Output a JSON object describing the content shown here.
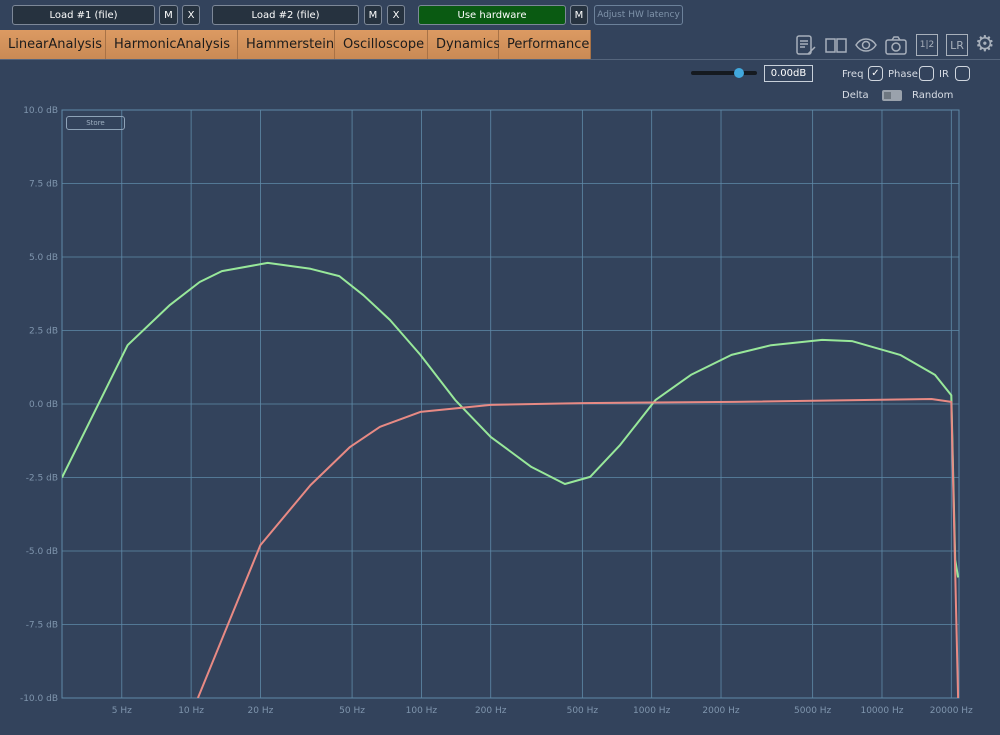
{
  "toolbar": {
    "load1": "Load #1 (file)",
    "load2": "Load #2 (file)",
    "m": "M",
    "x": "X",
    "hardware": "Use hardware",
    "adjust": "Adjust HW latency"
  },
  "tabs": [
    "LinearAnalysis",
    "HarmonicAnalysis",
    "Hammerstein",
    "Oscilloscope",
    "Dynamics",
    "Performance"
  ],
  "active_tab": "LinearAnalysis",
  "icons": [
    "notes-edit-icon",
    "book-icon",
    "eye-icon",
    "camera-icon",
    "one-two-icon",
    "lr-icon",
    "gear-icon"
  ],
  "icon_text": {
    "onetwo": "1|2",
    "lr": "LR"
  },
  "controls": {
    "gain_value": "0.00dB",
    "gain_slider_fraction": 0.72,
    "freq": "Freq",
    "freq_checked": true,
    "phase": "Phase",
    "phase_checked": false,
    "ir": "IR",
    "ir_checked": false,
    "delta": "Delta",
    "random": "Random",
    "store": "Store"
  },
  "colors": {
    "series1": "#98e89a",
    "series2": "#e88a84",
    "grid": "#5f8aa8",
    "background": "#33435c"
  },
  "chart_data": {
    "type": "line",
    "x_scale": "log",
    "xlim": [
      2.75,
      21600
    ],
    "ylim": [
      -10,
      10
    ],
    "grid": true,
    "x_ticks": [
      5,
      10,
      20,
      50,
      100,
      200,
      500,
      1000,
      2000,
      5000,
      10000,
      20000
    ],
    "x_tick_labels": [
      "5 Hz",
      "10 Hz",
      "20 Hz",
      "50 Hz",
      "100 Hz",
      "200 Hz",
      "500 Hz",
      "1000 Hz",
      "2000 Hz",
      "5000 Hz",
      "10000 Hz",
      "20000 Hz"
    ],
    "y_ticks": [
      10,
      7.5,
      5,
      2.5,
      0,
      -2.5,
      -5,
      -7.5,
      -10
    ],
    "y_tick_labels": [
      "10.0 dB",
      "7.5 dB",
      "5.0 dB",
      "2.5 dB",
      "0.0 dB",
      "-2.5 dB",
      "-5.0 dB",
      "-7.5 dB",
      "-10.0 dB"
    ],
    "series": [
      {
        "color": "#98e89a",
        "points": [
          [
            2.75,
            -2.5
          ],
          [
            5.3,
            2.0
          ],
          [
            8.1,
            3.37
          ],
          [
            10.9,
            4.15
          ],
          [
            13.6,
            4.52
          ],
          [
            21.5,
            4.8
          ],
          [
            24.9,
            4.73
          ],
          [
            33,
            4.6
          ],
          [
            44,
            4.35
          ],
          [
            56,
            3.7
          ],
          [
            73,
            2.86
          ],
          [
            99,
            1.67
          ],
          [
            140,
            0.14
          ],
          [
            200,
            -1.12
          ],
          [
            300,
            -2.14
          ],
          [
            420,
            -2.72
          ],
          [
            540,
            -2.48
          ],
          [
            730,
            -1.39
          ],
          [
            1040,
            0.14
          ],
          [
            1480,
            0.99
          ],
          [
            2220,
            1.67
          ],
          [
            3300,
            2.0
          ],
          [
            5500,
            2.18
          ],
          [
            7400,
            2.14
          ],
          [
            12000,
            1.67
          ],
          [
            17000,
            0.99
          ],
          [
            20000,
            0.3
          ],
          [
            20800,
            -5.3
          ],
          [
            21400,
            -5.9
          ]
        ]
      },
      {
        "color": "#e88a84",
        "points": [
          [
            10.7,
            -10
          ],
          [
            20,
            -4.8
          ],
          [
            33,
            -2.76
          ],
          [
            49,
            -1.46
          ],
          [
            66,
            -0.78
          ],
          [
            99,
            -0.27
          ],
          [
            200,
            -0.03
          ],
          [
            500,
            0.03
          ],
          [
            2300,
            0.07
          ],
          [
            16400,
            0.17
          ],
          [
            20000,
            0.07
          ],
          [
            21400,
            -10
          ]
        ]
      }
    ]
  }
}
